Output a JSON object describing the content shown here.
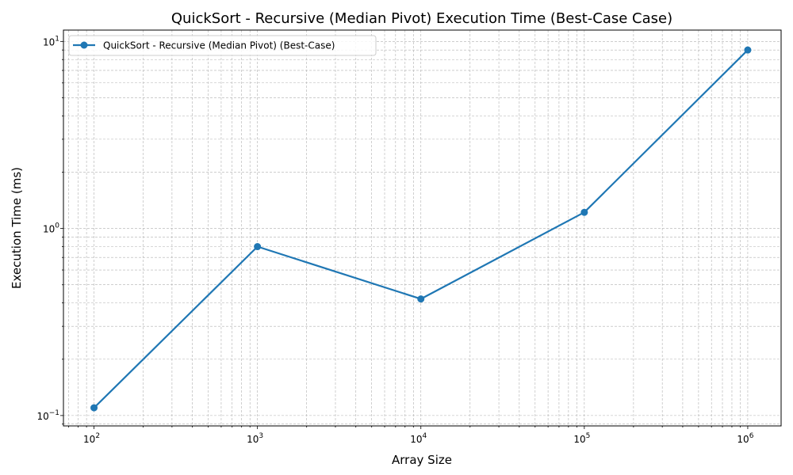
{
  "chart_data": {
    "type": "line",
    "title": "QuickSort - Recursive (Median Pivot) Execution Time (Best-Case Case)",
    "xlabel": "Array Size",
    "ylabel": "Execution Time (ms)",
    "xscale": "log",
    "yscale": "log",
    "xlim": [
      65,
      1600000
    ],
    "ylim": [
      0.088,
      11.5
    ],
    "x_ticks": [
      {
        "value": 100,
        "base": "10",
        "exp": "2"
      },
      {
        "value": 1000,
        "base": "10",
        "exp": "3"
      },
      {
        "value": 10000,
        "base": "10",
        "exp": "4"
      },
      {
        "value": 100000,
        "base": "10",
        "exp": "5"
      },
      {
        "value": 1000000,
        "base": "10",
        "exp": "6"
      }
    ],
    "y_ticks": [
      {
        "value": 0.1,
        "base": "10",
        "exp": "−1"
      },
      {
        "value": 1,
        "base": "10",
        "exp": "0"
      },
      {
        "value": 10,
        "base": "10",
        "exp": "1"
      }
    ],
    "grid": true,
    "legend_position": "top-left",
    "series": [
      {
        "name": "QuickSort - Recursive (Median Pivot) (Best-Case)",
        "color": "#1f77b4",
        "marker": "circle",
        "x": [
          100,
          1000,
          10000,
          100000,
          1000000
        ],
        "y": [
          0.11,
          0.8,
          0.42,
          1.22,
          9.0
        ]
      }
    ]
  }
}
